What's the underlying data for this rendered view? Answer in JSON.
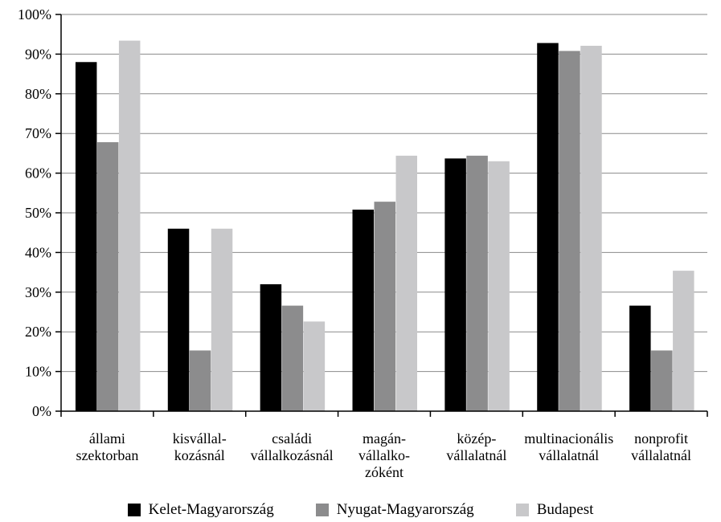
{
  "chart_data": {
    "type": "bar",
    "categories": [
      [
        "állami",
        "szektorban"
      ],
      [
        "kisvállal-",
        "kozásnál"
      ],
      [
        "családi",
        "vállalkozásnál"
      ],
      [
        "magán-",
        "vállalko-",
        "zóként"
      ],
      [
        "közép-",
        "vállalatnál"
      ],
      [
        "multinacionális",
        "vállalatnál"
      ],
      [
        "nonprofit",
        "vállalatnál"
      ]
    ],
    "series": [
      {
        "name": "Kelet-Magyarország",
        "color": "#000000",
        "values": [
          88,
          46,
          32,
          50.8,
          63.7,
          92.8,
          26.6
        ]
      },
      {
        "name": "Nyugat-Magyarország",
        "color": "#8c8c8d",
        "values": [
          67.8,
          15.3,
          26.6,
          52.8,
          64.4,
          90.8,
          15.3
        ]
      },
      {
        "name": "Budapest",
        "color": "#c8c8ca",
        "values": [
          93.4,
          46,
          22.6,
          64.4,
          63,
          92.1,
          35.4
        ]
      }
    ],
    "ylim": [
      0,
      100
    ],
    "yticks": [
      0,
      10,
      20,
      30,
      40,
      50,
      60,
      70,
      80,
      90,
      100
    ],
    "ytick_labels": [
      "0%",
      "10%",
      "20%",
      "30%",
      "40%",
      "50%",
      "60%",
      "70%",
      "80%",
      "90%",
      "100%"
    ],
    "grid": true,
    "legend_position": "bottom"
  }
}
